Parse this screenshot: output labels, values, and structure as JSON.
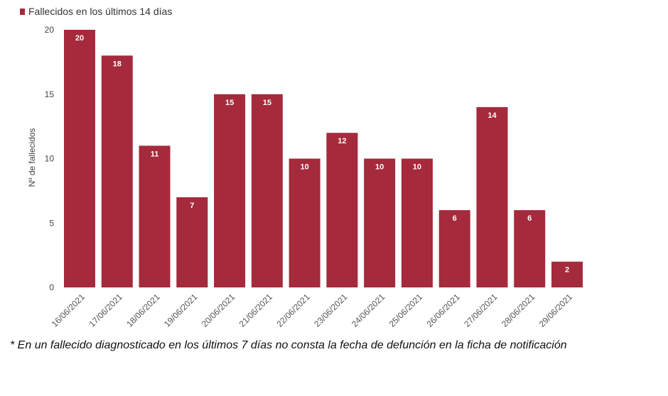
{
  "chart_data": {
    "type": "bar",
    "categories": [
      "16/06/2021",
      "17/06/2021",
      "18/06/2021",
      "19/06/2021",
      "20/06/2021",
      "21/06/2021",
      "22/06/2021",
      "23/06/2021",
      "24/06/2021",
      "25/06/2021",
      "26/06/2021",
      "27/06/2021",
      "28/06/2021",
      "29/06/2021"
    ],
    "series": [
      {
        "name": "Fallecidos en los últimos 14 días",
        "values": [
          20,
          18,
          11,
          7,
          15,
          15,
          10,
          12,
          10,
          10,
          6,
          14,
          6,
          2
        ],
        "color": "#a52a3c"
      }
    ],
    "ylabel": "Nº de fallecidos",
    "xlabel": "",
    "ylim": [
      0,
      20
    ],
    "yticks": [
      0,
      5,
      10,
      15,
      20
    ],
    "grid": false,
    "legend": "top-left",
    "data_labels": true
  },
  "footnote": "* En un  fallecido diagnosticado en los últimos 7 días no consta la fecha de defunción en la ficha de notificación"
}
